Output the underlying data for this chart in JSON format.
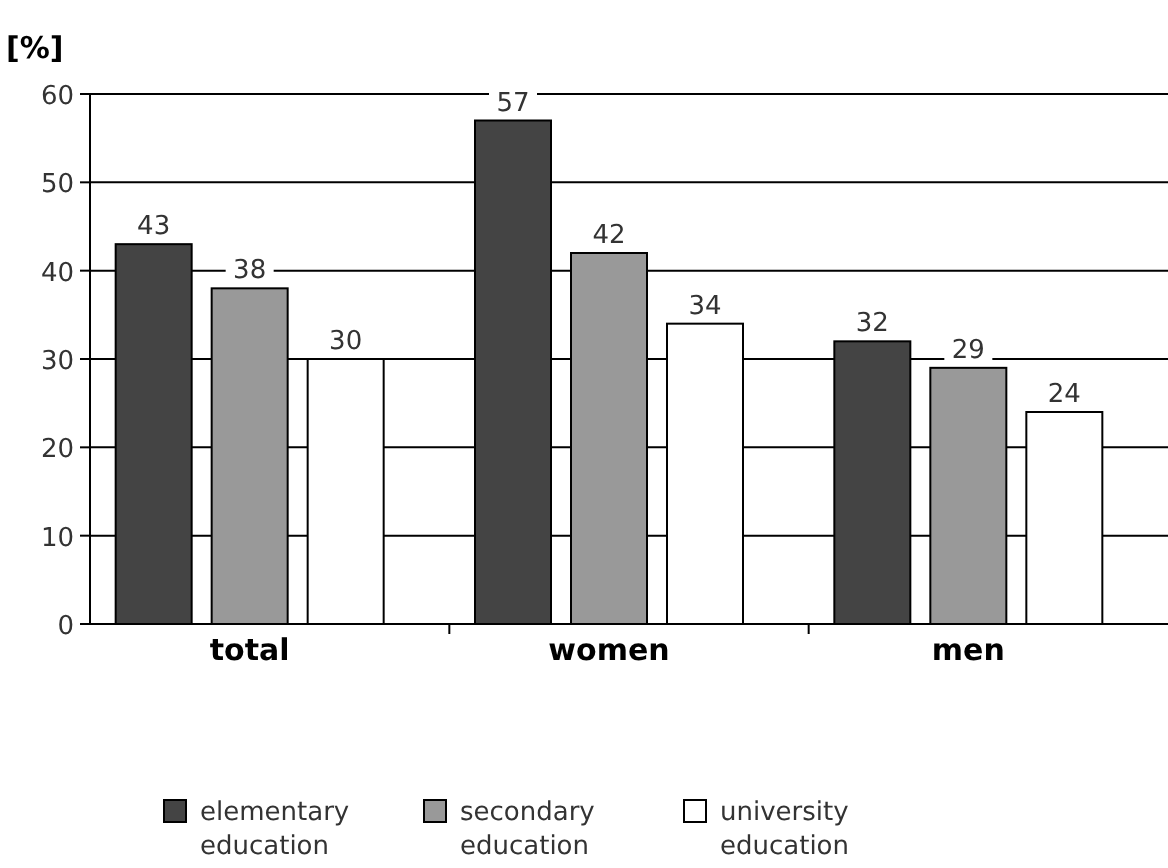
{
  "chart_data": {
    "type": "bar",
    "ylabel": "[%]",
    "categories": [
      "total",
      "women",
      "men"
    ],
    "series": [
      {
        "name": "elementary education",
        "color": "#444444",
        "values": [
          43,
          57,
          32
        ]
      },
      {
        "name": "secondary education",
        "color": "#999999",
        "values": [
          38,
          42,
          29
        ]
      },
      {
        "name": "university education",
        "color": "#ffffff",
        "values": [
          30,
          34,
          24
        ]
      }
    ],
    "ylim": [
      0,
      60
    ],
    "yticks": [
      0,
      10,
      20,
      30,
      40,
      50,
      60
    ],
    "grid": "y",
    "legend": "bottom",
    "data_labels": true
  }
}
